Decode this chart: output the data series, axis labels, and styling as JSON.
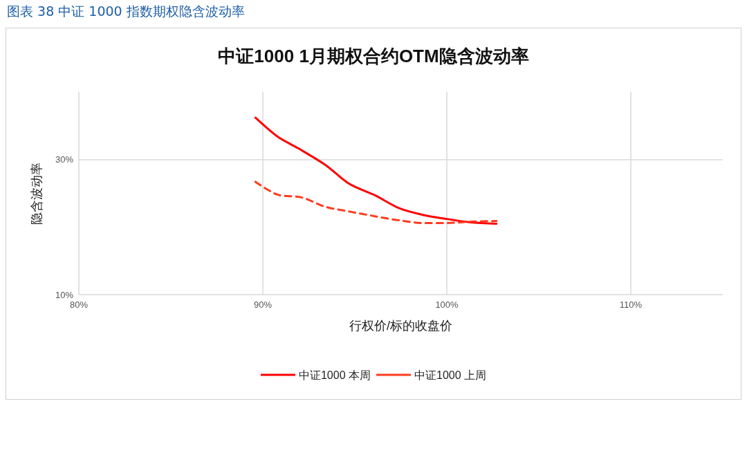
{
  "chart_data": {
    "type": "line",
    "title": "中证1000 1月期权合约OTM隐含波动率",
    "subtitle": "图表 38  中证 1000 指数期权隐含波动率",
    "xlabel": "行权价/标的收盘价",
    "ylabel": "隐含波动率",
    "xlim": [
      80,
      115
    ],
    "xticks": [
      {
        "value": 80,
        "label": "80%"
      },
      {
        "value": 90,
        "label": "90%"
      },
      {
        "value": 100,
        "label": "100%"
      },
      {
        "value": 110,
        "label": "110%"
      }
    ],
    "ylim": [
      10,
      40
    ],
    "yticks": [
      {
        "value": 10,
        "label": "10%"
      },
      {
        "value": 30,
        "label": "30%"
      }
    ],
    "grid": true,
    "legend": "bottom",
    "marker": "none",
    "series": [
      {
        "name": "中证1000 本周",
        "color": "#ff0000",
        "line_style": "solid",
        "x": [
          89.6,
          90.8,
          91.9,
          93.4,
          94.7,
          96.1,
          97.4,
          98.7,
          100.0,
          101.3,
          102.7
        ],
        "values": [
          36.2,
          33.4,
          31.7,
          29.2,
          26.4,
          24.7,
          22.8,
          21.8,
          21.2,
          20.7,
          20.5
        ]
      },
      {
        "name": "中证1000 上周",
        "color": "#ff3b1f",
        "line_style": "dashed",
        "x": [
          89.6,
          90.8,
          92.1,
          93.4,
          94.7,
          96.1,
          97.4,
          98.7,
          100.0,
          101.3,
          102.7
        ],
        "values": [
          26.7,
          24.8,
          24.4,
          23.0,
          22.3,
          21.6,
          21.0,
          20.6,
          20.6,
          20.8,
          20.9
        ]
      }
    ]
  }
}
